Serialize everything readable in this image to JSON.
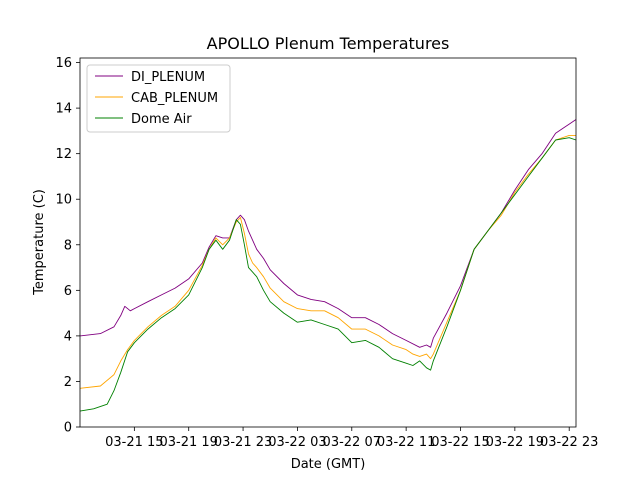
{
  "chart_data": {
    "type": "line",
    "title": "APOLLO Plenum Temperatures",
    "xlabel": "Date (GMT)",
    "ylabel": "Temperature (C)",
    "x_unit": "hours since 03-21 11:00 GMT",
    "xlim": [
      0,
      36.5
    ],
    "ylim": [
      0,
      16.2
    ],
    "x_ticks": [
      {
        "value": 4,
        "label": "03-21 15"
      },
      {
        "value": 8,
        "label": "03-21 19"
      },
      {
        "value": 12,
        "label": "03-21 23"
      },
      {
        "value": 16,
        "label": "03-22 03"
      },
      {
        "value": 20,
        "label": "03-22 07"
      },
      {
        "value": 24,
        "label": "03-22 11"
      },
      {
        "value": 28,
        "label": "03-22 15"
      },
      {
        "value": 32,
        "label": "03-22 19"
      },
      {
        "value": 36,
        "label": "03-22 23"
      }
    ],
    "y_ticks": [
      0,
      2,
      4,
      6,
      8,
      10,
      12,
      14,
      16
    ],
    "grid": false,
    "legend_position": "top-left",
    "series": [
      {
        "name": "DI_PLENUM",
        "color": "#800080",
        "x": [
          0,
          1.5,
          2.5,
          3,
          3.3,
          3.7,
          4,
          5,
          6,
          7,
          8,
          9,
          9.5,
          10,
          10.5,
          11,
          11.5,
          11.8,
          12.1,
          12.4,
          12.7,
          13,
          13.5,
          14,
          15,
          16,
          17,
          18,
          19,
          20,
          21,
          22,
          23,
          24,
          25,
          25.5,
          25.8,
          26,
          27,
          28,
          29,
          30,
          31,
          32,
          33,
          34,
          35,
          36,
          36.5
        ],
        "y": [
          4.0,
          4.1,
          4.4,
          4.9,
          5.3,
          5.1,
          5.2,
          5.5,
          5.8,
          6.1,
          6.5,
          7.2,
          7.9,
          8.4,
          8.3,
          8.3,
          9.1,
          9.3,
          9.1,
          8.6,
          8.2,
          7.8,
          7.4,
          6.9,
          6.3,
          5.8,
          5.6,
          5.5,
          5.2,
          4.8,
          4.8,
          4.5,
          4.1,
          3.8,
          3.5,
          3.6,
          3.5,
          3.9,
          5.0,
          6.2,
          7.8,
          8.6,
          9.4,
          10.4,
          11.3,
          12.0,
          12.9,
          13.3,
          13.5
        ]
      },
      {
        "name": "CAB_PLENUM",
        "color": "#ffa500",
        "x": [
          0,
          1.5,
          2.5,
          3,
          3.5,
          4,
          5,
          6,
          7,
          8,
          9,
          9.5,
          10,
          10.5,
          11,
          11.5,
          11.8,
          12.1,
          12.4,
          12.7,
          13,
          13.5,
          14,
          15,
          16,
          17,
          18,
          19,
          20,
          21,
          22,
          23,
          24,
          24.5,
          25,
          25.5,
          25.8,
          26,
          27,
          28,
          29,
          30,
          31,
          32,
          33,
          34,
          35,
          36,
          36.5
        ],
        "y": [
          1.7,
          1.8,
          2.3,
          2.9,
          3.4,
          3.8,
          4.4,
          4.9,
          5.3,
          6.0,
          7.1,
          7.8,
          8.3,
          8.0,
          8.3,
          9.0,
          9.2,
          8.5,
          7.6,
          7.2,
          7.0,
          6.6,
          6.1,
          5.5,
          5.2,
          5.1,
          5.1,
          4.8,
          4.3,
          4.3,
          4.0,
          3.6,
          3.4,
          3.2,
          3.1,
          3.2,
          3.0,
          3.2,
          4.6,
          6.0,
          7.8,
          8.6,
          9.3,
          10.3,
          11.1,
          11.8,
          12.6,
          12.8,
          12.8
        ]
      },
      {
        "name": "Dome Air",
        "color": "#008000",
        "x": [
          0,
          1,
          2,
          2.5,
          3,
          3.5,
          4,
          5,
          6,
          7,
          8,
          9,
          9.5,
          10,
          10.5,
          11,
          11.5,
          11.8,
          12.1,
          12.4,
          12.7,
          13,
          13.5,
          14,
          15,
          16,
          17,
          18,
          19,
          20,
          21,
          22,
          23,
          24,
          24.5,
          25,
          25.5,
          25.8,
          26,
          27,
          28,
          29,
          30,
          31,
          32,
          33,
          34,
          35,
          36,
          36.5
        ],
        "y": [
          0.7,
          0.8,
          1.0,
          1.6,
          2.4,
          3.3,
          3.7,
          4.3,
          4.8,
          5.2,
          5.8,
          7.0,
          7.8,
          8.2,
          7.8,
          8.2,
          9.1,
          8.9,
          8.0,
          7.0,
          6.8,
          6.6,
          6.0,
          5.5,
          5.0,
          4.6,
          4.7,
          4.5,
          4.3,
          3.7,
          3.8,
          3.5,
          3.0,
          2.8,
          2.7,
          2.9,
          2.6,
          2.5,
          2.9,
          4.4,
          6.0,
          7.8,
          8.6,
          9.4,
          10.2,
          11.0,
          11.8,
          12.6,
          12.7,
          12.6
        ]
      }
    ]
  }
}
